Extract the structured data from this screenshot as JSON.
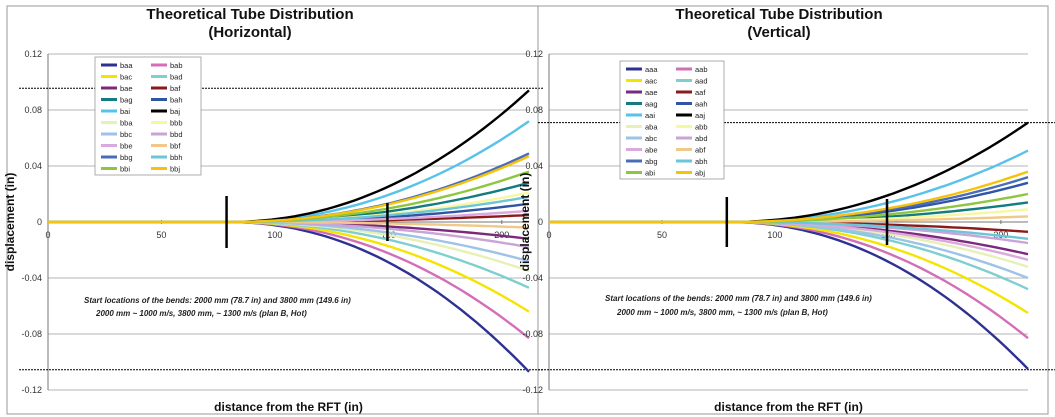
{
  "chart_data": [
    {
      "type": "line",
      "title": [
        "Theoretical Tube Distribution",
        "(Horizontal)"
      ],
      "xlabel": "distance from the RFT (in)",
      "ylabel": "displacement (in)",
      "xlim": [
        0,
        212
      ],
      "ylim": [
        -0.12,
        0.12
      ],
      "xticks": [
        "0",
        "50",
        "100",
        "150",
        "200"
      ],
      "yticks": [
        "0.12",
        "0.08",
        "0.04",
        "0",
        "-0.04",
        "-0.08",
        "-0.12"
      ],
      "grid": true,
      "legend_position": "top-left",
      "annotations": [
        "Start locations of the bends: 2000 mm (78.7 in) and 3800 mm (149.6 in)",
        "2000 mm ~ 1000 m/s, 3800 mm, ~ 1300 m/s (plan B, Hot)"
      ],
      "reference_lines": {
        "upper": 0.0955,
        "lower": -0.1055
      },
      "bend_markers_x": [
        78.7,
        149.6
      ],
      "series": [
        {
          "name": "baa",
          "color": "#2e3192",
          "y_end": -0.107
        },
        {
          "name": "bab",
          "color": "#d36eb8",
          "y_end": -0.083
        },
        {
          "name": "bac",
          "color": "#f5e400",
          "y_end": -0.064
        },
        {
          "name": "bad",
          "color": "#7fcfce",
          "y_end": -0.047
        },
        {
          "name": "bae",
          "color": "#7b2a7b",
          "y_end": -0.012
        },
        {
          "name": "baf",
          "color": "#8b1a1a",
          "y_end": 0.005
        },
        {
          "name": "bag",
          "color": "#137c7e",
          "y_end": 0.028
        },
        {
          "name": "bah",
          "color": "#2f55a4",
          "y_end": 0.013
        },
        {
          "name": "bai",
          "color": "#58c2e8",
          "y_end": 0.072
        },
        {
          "name": "baj",
          "color": "#000000",
          "y_end": 0.094
        },
        {
          "name": "bba",
          "color": "#e7f0b5",
          "y_end": -0.035
        },
        {
          "name": "bbb",
          "color": "#f7f7a0",
          "y_end": 0.021
        },
        {
          "name": "bbc",
          "color": "#9dc3e6",
          "y_end": -0.028
        },
        {
          "name": "bbd",
          "color": "#c9a4d6",
          "y_end": -0.018
        },
        {
          "name": "bbe",
          "color": "#dba9de",
          "y_end": 0.008
        },
        {
          "name": "bbf",
          "color": "#f0c98a",
          "y_end": -0.004
        },
        {
          "name": "bbg",
          "color": "#4a6dba",
          "y_end": 0.049
        },
        {
          "name": "bbh",
          "color": "#6cc6d8",
          "y_end": 0.018
        },
        {
          "name": "bbi",
          "color": "#8dc63f",
          "y_end": 0.036
        },
        {
          "name": "bbj",
          "color": "#f7c20a",
          "y_end": 0.047
        }
      ]
    },
    {
      "type": "line",
      "title": [
        "Theoretical Tube Distribution",
        "(Vertical)"
      ],
      "xlabel": "distance from the RFT (in)",
      "ylabel": "displacement (in)",
      "xlim": [
        0,
        212
      ],
      "ylim": [
        -0.12,
        0.12
      ],
      "xticks": [
        "0",
        "50",
        "100",
        "150",
        "200"
      ],
      "yticks": [
        "0.12",
        "0.08",
        "0.04",
        "0",
        "-0.04",
        "-0.08",
        "-0.12"
      ],
      "grid": true,
      "legend_position": "top-left",
      "annotations": [
        "Start locations of the bends: 2000 mm (78.7 in) and 3800 mm (149.6 in)",
        "2000 mm ~ 1000 m/s, 3800 mm, ~ 1300 m/s (plan B, Hot)"
      ],
      "reference_lines": {
        "upper": 0.071,
        "lower": -0.1055
      },
      "bend_markers_x": [
        78.7,
        149.6
      ],
      "series": [
        {
          "name": "aaa",
          "color": "#2e3192",
          "y_end": -0.105
        },
        {
          "name": "aab",
          "color": "#d36eb8",
          "y_end": -0.083
        },
        {
          "name": "aac",
          "color": "#f5e400",
          "y_end": -0.065
        },
        {
          "name": "aad",
          "color": "#7fcfce",
          "y_end": -0.048
        },
        {
          "name": "aae",
          "color": "#7b2a7b",
          "y_end": -0.023
        },
        {
          "name": "aaf",
          "color": "#8b1a1a",
          "y_end": -0.007
        },
        {
          "name": "aag",
          "color": "#137c7e",
          "y_end": 0.014
        },
        {
          "name": "aah",
          "color": "#2f55a4",
          "y_end": 0.028
        },
        {
          "name": "aai",
          "color": "#58c2e8",
          "y_end": 0.051
        },
        {
          "name": "aaj",
          "color": "#000000",
          "y_end": 0.071
        },
        {
          "name": "aba",
          "color": "#e7f0b5",
          "y_end": -0.032
        },
        {
          "name": "abb",
          "color": "#f7f7a0",
          "y_end": 0.009
        },
        {
          "name": "abc",
          "color": "#9dc3e6",
          "y_end": -0.04
        },
        {
          "name": "abd",
          "color": "#c9a4d6",
          "y_end": -0.015
        },
        {
          "name": "abe",
          "color": "#dba9de",
          "y_end": -0.027
        },
        {
          "name": "abf",
          "color": "#f0c98a",
          "y_end": 0.004
        },
        {
          "name": "abg",
          "color": "#4a6dba",
          "y_end": 0.032
        },
        {
          "name": "abh",
          "color": "#6cc6d8",
          "y_end": -0.012
        },
        {
          "name": "abi",
          "color": "#8dc63f",
          "y_end": 0.02
        },
        {
          "name": "abj",
          "color": "#f7c20a",
          "y_end": 0.036
        }
      ]
    }
  ]
}
